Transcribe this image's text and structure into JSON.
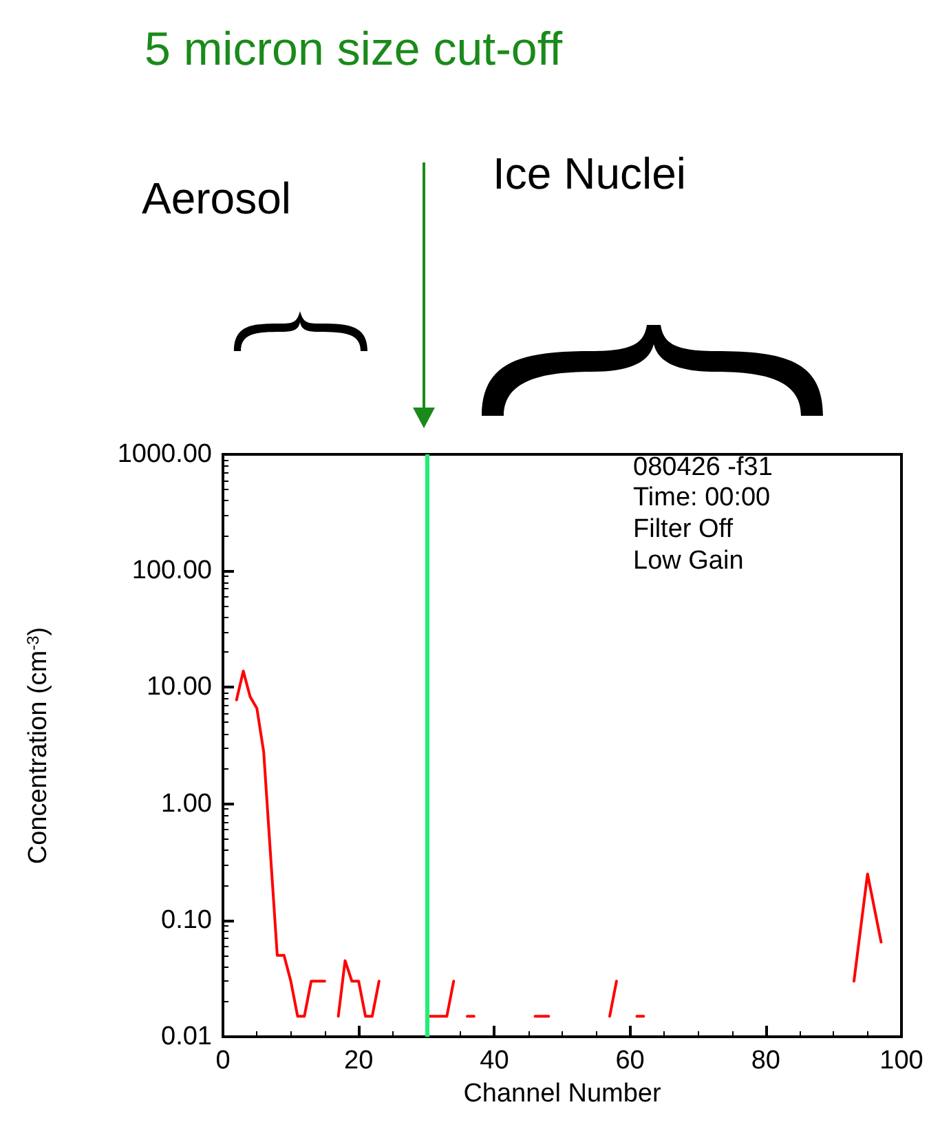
{
  "chart_data": {
    "type": "line",
    "title": "5 micron size cut-off",
    "xlabel": "Channel Number",
    "ylabel": "Concentration (cm$^{-3}$)",
    "annotations": [
      "Aerosol",
      "Ice Nuclei",
      "080426 -f31",
      "Time: 00:00",
      "Filter Off",
      "Low Gain"
    ],
    "series": [
      {
        "color": "#ff0000",
        "x": [
          2,
          3,
          4,
          5,
          6,
          8,
          9,
          10,
          11,
          12,
          13,
          15,
          16,
          17,
          18,
          19,
          20,
          21,
          22,
          23,
          24,
          30,
          33,
          34,
          35,
          36,
          37,
          38,
          46,
          48,
          49,
          57,
          58,
          59,
          61,
          62,
          63,
          93,
          95,
          97
        ],
        "values": [
          7.8,
          13.8,
          8.3,
          6.6,
          2.8,
          0.05,
          0.05,
          0.03,
          0.015,
          0.015,
          0.03,
          0.03,
          null,
          0.015,
          0.045,
          0.03,
          0.03,
          0.015,
          0.015,
          0.03,
          null,
          0.015,
          0.015,
          0.03,
          null,
          0.015,
          0.015,
          null,
          0.015,
          0.015,
          null,
          0.015,
          0.03,
          null,
          0.015,
          0.015,
          null,
          0.03,
          0.25,
          0.065
        ]
      }
    ],
    "log": "y",
    "xlim": [
      0,
      100
    ],
    "xticks": [
      0,
      20,
      40,
      60,
      80,
      100
    ],
    "ylim": [
      0.01,
      1000
    ],
    "yticks": [
      {
        "value": 0.01,
        "label": "0.01"
      },
      {
        "value": 0.1,
        "label": "0.10"
      },
      {
        "value": 1,
        "label": "1.00"
      },
      {
        "value": 10,
        "label": "10.00"
      },
      {
        "value": 100,
        "label": "100.00"
      },
      {
        "value": 1000,
        "label": "1000.00"
      }
    ],
    "ref_lines": [
      {
        "axis": "x",
        "value": 30,
        "color": "#22ee77"
      }
    ],
    "grid": false,
    "marker": "none",
    "line_style": "solid"
  }
}
